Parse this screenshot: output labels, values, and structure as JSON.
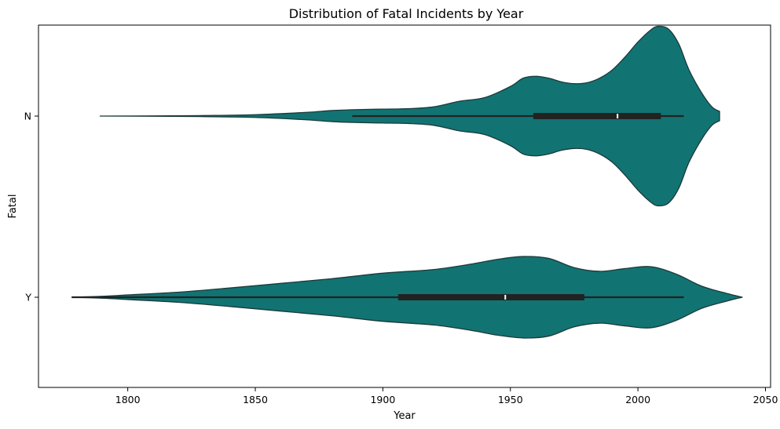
{
  "chart_data": {
    "type": "violin",
    "orientation": "horizontal",
    "title": "Distribution of Fatal Incidents by Year",
    "xlabel": "Year",
    "ylabel": "Fatal",
    "xlim": [
      1765,
      2052
    ],
    "x_ticks": [
      1800,
      1850,
      1900,
      1950,
      2000,
      2050
    ],
    "categories": [
      "N",
      "Y"
    ],
    "fill_color": "#127373",
    "edge_color": "#1c3a3a",
    "box_color": "#222222",
    "grid": false,
    "legend": "none",
    "violins": [
      {
        "category": "N",
        "whiskers": [
          1888,
          2018
        ],
        "q1": 1959,
        "median": 1992,
        "q3": 2009,
        "density": [
          [
            1789,
            0.0
          ],
          [
            1810,
            0.002
          ],
          [
            1830,
            0.006
          ],
          [
            1850,
            0.015
          ],
          [
            1870,
            0.04
          ],
          [
            1880,
            0.06
          ],
          [
            1890,
            0.07
          ],
          [
            1900,
            0.075
          ],
          [
            1910,
            0.08
          ],
          [
            1920,
            0.1
          ],
          [
            1930,
            0.16
          ],
          [
            1940,
            0.2
          ],
          [
            1950,
            0.32
          ],
          [
            1955,
            0.41
          ],
          [
            1960,
            0.43
          ],
          [
            1965,
            0.41
          ],
          [
            1970,
            0.37
          ],
          [
            1975,
            0.35
          ],
          [
            1980,
            0.36
          ],
          [
            1985,
            0.41
          ],
          [
            1990,
            0.5
          ],
          [
            1995,
            0.64
          ],
          [
            2000,
            0.8
          ],
          [
            2005,
            0.93
          ],
          [
            2008,
            0.97
          ],
          [
            2012,
            0.94
          ],
          [
            2016,
            0.78
          ],
          [
            2020,
            0.5
          ],
          [
            2025,
            0.25
          ],
          [
            2029,
            0.1
          ],
          [
            2032,
            0.05
          ]
        ]
      },
      {
        "category": "Y",
        "whiskers": [
          1778,
          2018
        ],
        "q1": 1906,
        "median": 1948,
        "q3": 1979,
        "density": [
          [
            1778,
            0.0
          ],
          [
            1790,
            0.01
          ],
          [
            1800,
            0.025
          ],
          [
            1820,
            0.055
          ],
          [
            1840,
            0.1
          ],
          [
            1860,
            0.15
          ],
          [
            1880,
            0.2
          ],
          [
            1900,
            0.26
          ],
          [
            1920,
            0.3
          ],
          [
            1935,
            0.36
          ],
          [
            1945,
            0.41
          ],
          [
            1955,
            0.44
          ],
          [
            1965,
            0.42
          ],
          [
            1975,
            0.32
          ],
          [
            1985,
            0.28
          ],
          [
            1995,
            0.31
          ],
          [
            2005,
            0.33
          ],
          [
            2015,
            0.25
          ],
          [
            2025,
            0.12
          ],
          [
            2035,
            0.04
          ],
          [
            2041,
            0.0
          ]
        ]
      }
    ]
  }
}
